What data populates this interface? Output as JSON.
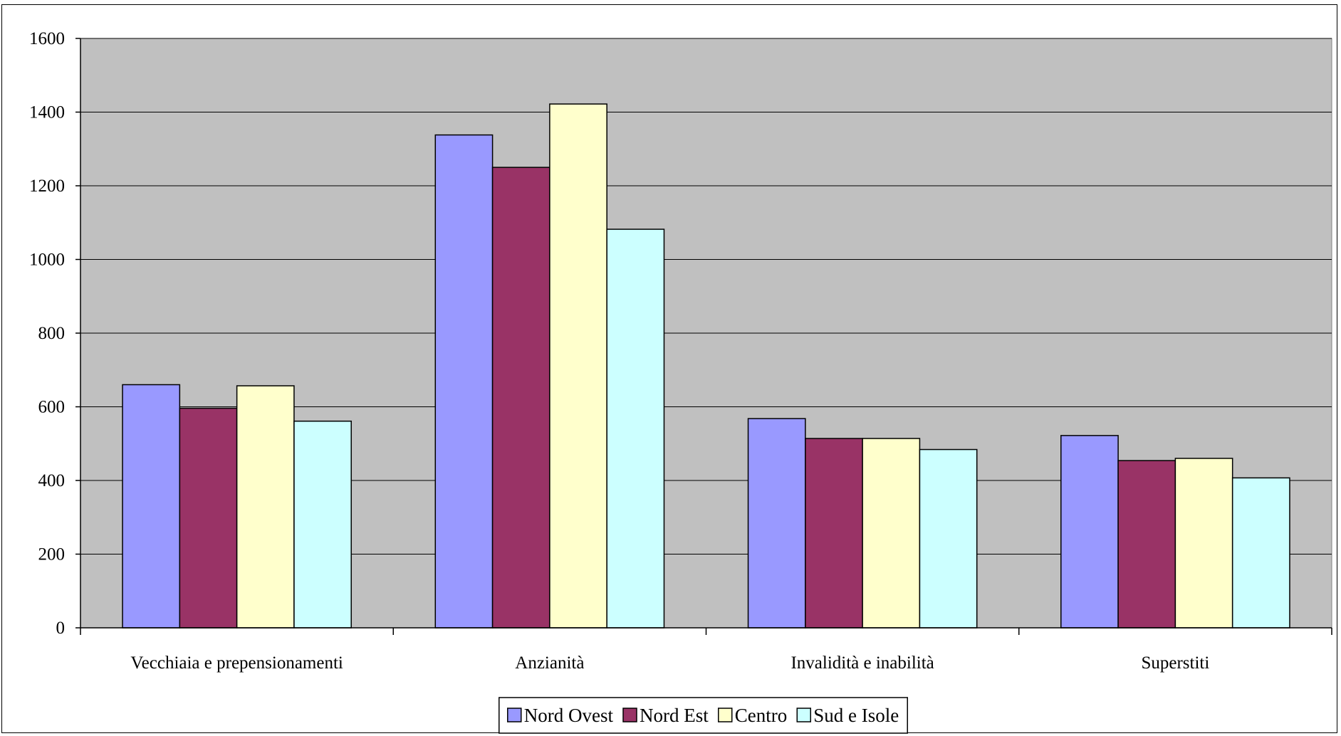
{
  "chart_data": {
    "type": "bar",
    "title": "",
    "xlabel": "",
    "ylabel": "",
    "categories": [
      "Vecchiaia e prepensionamenti",
      "Anzianità",
      "Invalidità e inabilità",
      "Superstiti"
    ],
    "series": [
      {
        "name": "Nord Ovest",
        "color": "#9999FF",
        "values": [
          660,
          1338,
          568,
          522
        ]
      },
      {
        "name": "Nord Est",
        "color": "#993366",
        "values": [
          596,
          1250,
          514,
          454
        ]
      },
      {
        "name": "Centro",
        "color": "#FFFFCC",
        "values": [
          657,
          1422,
          514,
          460
        ]
      },
      {
        "name": "Sud e Isole",
        "color": "#CCFFFF",
        "values": [
          561,
          1082,
          484,
          407
        ]
      }
    ],
    "ylim": [
      0,
      1600
    ],
    "yticks": [
      0,
      200,
      400,
      600,
      800,
      1000,
      1200,
      1400,
      1600
    ],
    "grid": true,
    "plot_background": "#C0C0C0",
    "legend_position": "bottom"
  }
}
